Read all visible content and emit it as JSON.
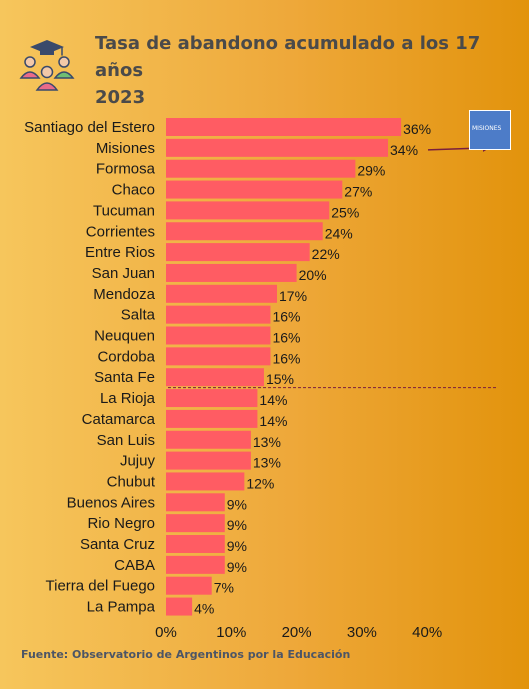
{
  "title": {
    "line1": "Tasa de abandono acumulado a los 17",
    "line2": "años",
    "line3": "2023"
  },
  "source": "Fuente: Observatorio de Argentinos por la Educación",
  "highlight": {
    "province": "Misiones",
    "inset_label": "MISIONES",
    "color": "#7a1f3d"
  },
  "icons": {
    "logo": "students-graduation-icon",
    "inset": "misiones-map-icon"
  },
  "colors": {
    "bar": "#ff5c63",
    "text": "#1a1a1a",
    "divider": "#7a1f3d"
  },
  "chart_data": {
    "type": "bar",
    "orientation": "horizontal",
    "categories": [
      "Santiago del Estero",
      "Misiones",
      "Formosa",
      "Chaco",
      "Tucuman",
      "Corrientes",
      "Entre Rios",
      "San Juan",
      "Mendoza",
      "Salta",
      "Neuquen",
      "Cordoba",
      "Santa Fe",
      "La Rioja",
      "Catamarca",
      "San Luis",
      "Jujuy",
      "Chubut",
      "Buenos Aires",
      "Rio Negro",
      "Santa Cruz",
      "CABA",
      "Tierra del Fuego",
      "La Pampa"
    ],
    "values": [
      36,
      34,
      29,
      27,
      25,
      24,
      22,
      20,
      17,
      16,
      16,
      16,
      15,
      14,
      14,
      13,
      13,
      12,
      9,
      9,
      9,
      9,
      7,
      4
    ],
    "value_labels": [
      "36%",
      "34%",
      "29%",
      "27%",
      "25%",
      "24%",
      "22%",
      "20%",
      "17%",
      "16%",
      "16%",
      "16%",
      "15%",
      "14%",
      "14%",
      "13%",
      "13%",
      "12%",
      "9%",
      "9%",
      "9%",
      "9%",
      "7%",
      "4%"
    ],
    "xticks": [
      "0%",
      "10%",
      "20%",
      "30%",
      "40%"
    ],
    "xlim": [
      0,
      40
    ],
    "divider_after": "Santa Fe",
    "grid": false
  }
}
